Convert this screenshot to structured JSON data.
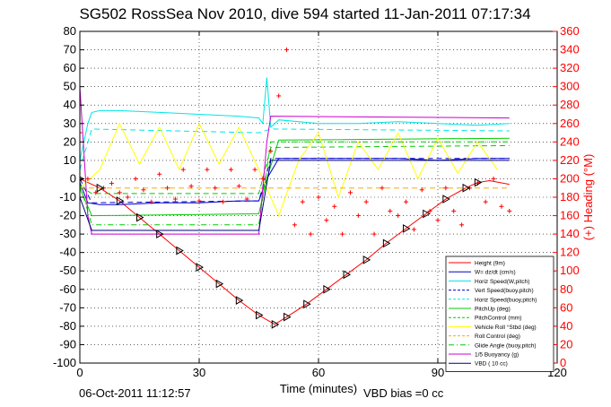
{
  "title": "SG502 RossSea Nov 2010, dive 594 started 11-Jan-2011 07:17:34",
  "footer": {
    "date": "06-Oct-2011 11:12:57",
    "vbd_bias": "VBD bias =0 cc"
  },
  "chart_data": {
    "type": "line",
    "xlabel": "Time (minutes)",
    "xlim": [
      0,
      120
    ],
    "x_ticks": [
      0,
      30,
      60,
      90,
      120
    ],
    "ylim_left": [
      -100,
      80
    ],
    "y_ticks_left": [
      -100,
      -90,
      -80,
      -70,
      -60,
      -50,
      -40,
      -30,
      -20,
      -10,
      0,
      10,
      20,
      30,
      40,
      50,
      60,
      70,
      80
    ],
    "ylabel_right": "(+) Heading (°M)",
    "ylim_right": [
      0,
      360
    ],
    "y_ticks_right": [
      0,
      20,
      40,
      60,
      80,
      100,
      120,
      140,
      160,
      180,
      200,
      220,
      240,
      260,
      280,
      300,
      320,
      340,
      360
    ],
    "grid": true,
    "legend_position": "lower-right",
    "series": [
      {
        "name": "Height (9m)",
        "color": "#ff0000",
        "style": "solid",
        "x": [
          0,
          5,
          10,
          15,
          20,
          25,
          30,
          35,
          40,
          45,
          49,
          52,
          57,
          62,
          67,
          72,
          77,
          82,
          87,
          92,
          97,
          100,
          103,
          108
        ],
        "y": [
          0,
          -5,
          -12,
          -21,
          -30,
          -39,
          -48,
          -57,
          -66,
          -74,
          -79,
          -75,
          -68,
          -60,
          -52,
          -44,
          -35,
          -27,
          -19,
          -11,
          -5,
          -2,
          -1,
          -3
        ]
      },
      {
        "name": "W= dz/dt (cm/s)",
        "color": "#0000cc",
        "style": "solid",
        "x": [
          0,
          2,
          5,
          10,
          20,
          30,
          40,
          45,
          47,
          50,
          60,
          70,
          80,
          90,
          100,
          108
        ],
        "y": [
          -2,
          -13,
          -14,
          -14,
          -13,
          -13,
          -12,
          -12,
          0,
          11,
          11,
          11,
          11,
          10,
          11,
          11
        ]
      },
      {
        "name": "Horiz Speed(W,pitch)",
        "color": "#00e5e5",
        "style": "solid",
        "x": [
          0,
          2,
          3,
          5,
          10,
          20,
          30,
          40,
          45,
          46,
          47,
          48,
          50,
          60,
          70,
          80,
          90,
          100,
          108
        ],
        "y": [
          10,
          30,
          36,
          37,
          37,
          36,
          35,
          34,
          33,
          30,
          55,
          28,
          32,
          30,
          30,
          31,
          30,
          29,
          30
        ]
      },
      {
        "name": "Vert Speed(buoy,pitch)",
        "color": "#0000cc",
        "style": "dashed",
        "x": [
          0,
          3,
          45,
          48,
          108
        ],
        "y": [
          0,
          -13,
          -12,
          11,
          11
        ]
      },
      {
        "name": "Horiz Speed(buoy,pitch)",
        "color": "#00e5e5",
        "style": "dashed",
        "x": [
          0,
          3,
          45,
          48,
          108
        ],
        "y": [
          5,
          27,
          25,
          27,
          26
        ]
      },
      {
        "name": "PitchUp (deg)",
        "color": "#00cc00",
        "style": "solid",
        "x": [
          0,
          3,
          45,
          47,
          50,
          108
        ],
        "y": [
          -5,
          -20,
          -19,
          0,
          21,
          22
        ]
      },
      {
        "name": "PitchControl (mm)",
        "color": "#00cc00",
        "style": "dashed",
        "x": [
          0,
          3,
          45,
          48,
          108
        ],
        "y": [
          -4,
          -8,
          -8,
          17,
          18
        ]
      },
      {
        "name": "Vehicle Roll °Stbd (deg)",
        "color": "#ffff00",
        "style": "solid",
        "x": [
          0,
          5,
          10,
          15,
          20,
          25,
          30,
          35,
          40,
          45,
          50,
          55,
          60,
          65,
          70,
          75,
          80,
          85,
          90,
          95,
          100,
          105
        ],
        "y": [
          -5,
          5,
          30,
          8,
          28,
          5,
          30,
          8,
          28,
          5,
          -20,
          10,
          25,
          -10,
          20,
          5,
          25,
          0,
          22,
          3,
          20,
          5
        ]
      },
      {
        "name": "Roll Control (deg)",
        "color": "#ffaa00",
        "style": "dashed",
        "x": [
          0,
          108
        ],
        "y": [
          -5,
          -5
        ]
      },
      {
        "name": "Glide Angle (buoy,pitch)",
        "color": "#00cc00",
        "style": "dashdot",
        "x": [
          0,
          3,
          45,
          48,
          108
        ],
        "y": [
          -3,
          -25,
          -25,
          20,
          20
        ]
      },
      {
        "name": "1/5 Buoyancy (g)",
        "color": "#cc00cc",
        "style": "solid",
        "x": [
          0,
          2,
          3,
          45,
          47,
          48,
          108
        ],
        "y": [
          50,
          -20,
          -30,
          -30,
          20,
          34,
          33
        ]
      },
      {
        "name": "VBD ( 10 cc)",
        "color": "#000080",
        "style": "solid",
        "x": [
          0,
          3,
          45,
          48,
          108
        ],
        "y": [
          -10,
          -28,
          -28,
          10,
          10
        ]
      }
    ],
    "heading_series": {
      "name": "Heading",
      "axis": "right",
      "color": "#ff0000",
      "marker": "+",
      "x": [
        0,
        2,
        4,
        6,
        8,
        10,
        12,
        14,
        16,
        18,
        20,
        22,
        24,
        26,
        28,
        30,
        32,
        34,
        36,
        38,
        40,
        42,
        44,
        46,
        48,
        50,
        52,
        54,
        56,
        58,
        60,
        62,
        64,
        66,
        68,
        70,
        72,
        74,
        76,
        78,
        80,
        82,
        84,
        86,
        88,
        90,
        92,
        94,
        96,
        98,
        100,
        102,
        104,
        106,
        108
      ],
      "y": [
        250,
        200,
        185,
        190,
        195,
        185,
        180,
        200,
        188,
        175,
        205,
        190,
        178,
        210,
        192,
        176,
        210,
        190,
        175,
        210,
        192,
        178,
        210,
        200,
        230,
        290,
        340,
        150,
        175,
        140,
        180,
        155,
        170,
        140,
        185,
        160,
        175,
        140,
        190,
        165,
        160,
        175,
        145,
        188,
        165,
        155,
        190,
        165,
        150,
        190,
        195,
        175,
        200,
        170,
        165
      ]
    },
    "depth_markers": {
      "color": "#000000",
      "marker": "triangle-right",
      "x": [
        0,
        5,
        10,
        15,
        20,
        25,
        30,
        35,
        40,
        45,
        49,
        52,
        57,
        62,
        67,
        72,
        77,
        82,
        87,
        92,
        97,
        100
      ],
      "y": [
        0,
        -5,
        -12,
        -21,
        -30,
        -39,
        -48,
        -57,
        -66,
        -74,
        -79,
        -75,
        -68,
        -60,
        -52,
        -44,
        -35,
        -27,
        -19,
        -11,
        -5,
        -2
      ]
    }
  }
}
